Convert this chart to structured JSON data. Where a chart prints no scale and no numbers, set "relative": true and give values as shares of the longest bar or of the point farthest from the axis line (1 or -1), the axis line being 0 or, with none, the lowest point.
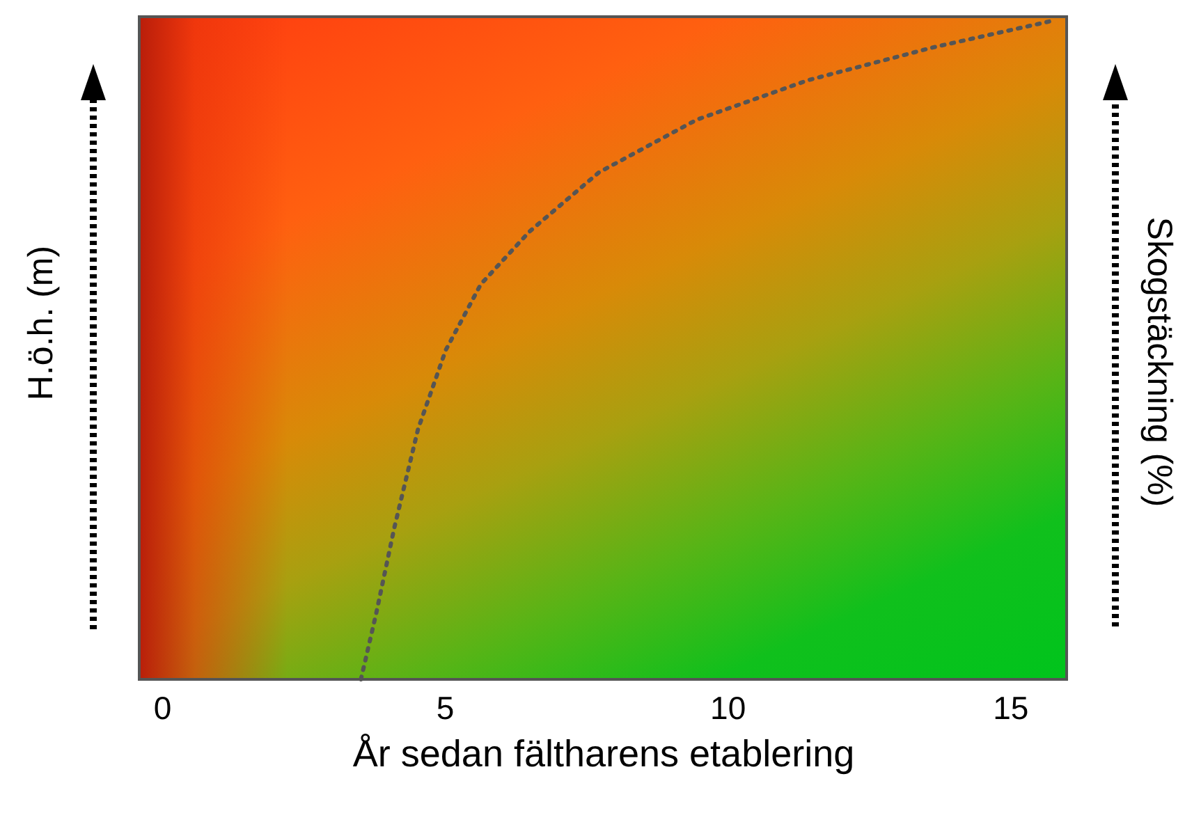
{
  "chart_data": {
    "type": "line",
    "relative": true,
    "xlabel": "År sedan fältharens etablering",
    "ylabel": "H.ö.h. (m)",
    "y2label": "Skogstäckning (%)",
    "xlim": [
      -0.4,
      16
    ],
    "xticks": [
      0,
      5,
      10,
      15
    ],
    "grid": false,
    "line_style": "dotted",
    "marker": "none",
    "series": [
      {
        "color": "#555555",
        "x": [
          3.52,
          3.79,
          4.11,
          4.53,
          5.02,
          5.64,
          6.5,
          7.73,
          9.46,
          11.43,
          13.65,
          15.74
        ],
        "values": [
          0,
          0.1,
          0.23,
          0.38,
          0.5,
          0.6,
          0.68,
          0.77,
          0.85,
          0.91,
          0.96,
          1.0
        ]
      }
    ]
  }
}
